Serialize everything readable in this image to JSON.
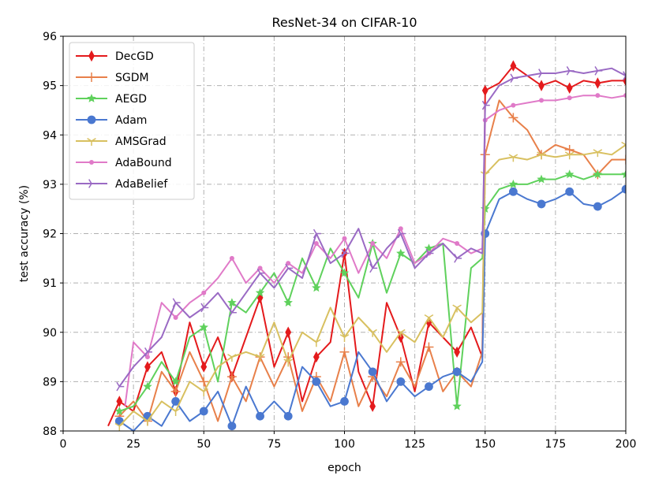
{
  "chart_data": {
    "type": "line",
    "title": "ResNet-34 on CIFAR-10",
    "xlabel": "epoch",
    "ylabel": "test accuracy (%)",
    "xlim": [
      0,
      200
    ],
    "ylim": [
      88,
      96
    ],
    "x_ticks": [
      0,
      25,
      50,
      75,
      100,
      125,
      150,
      175,
      200
    ],
    "y_ticks": [
      88,
      89,
      90,
      91,
      92,
      93,
      94,
      95,
      96
    ],
    "grid": true,
    "grid_style": "dash-dot",
    "legend_position": "upper-left",
    "series": [
      {
        "name": "DecGD",
        "color": "#e41a1c",
        "marker": "diamond",
        "x": [
          16,
          20,
          25,
          30,
          35,
          40,
          45,
          50,
          55,
          60,
          65,
          70,
          75,
          80,
          85,
          90,
          95,
          100,
          105,
          110,
          115,
          120,
          125,
          130,
          135,
          140,
          145,
          149,
          150,
          155,
          160,
          165,
          170,
          175,
          180,
          185,
          190,
          195,
          200
        ],
        "y": [
          88.1,
          88.6,
          88.4,
          89.3,
          89.6,
          88.8,
          90.2,
          89.3,
          89.9,
          89.1,
          89.9,
          90.7,
          89.3,
          90.0,
          88.6,
          89.5,
          89.8,
          91.6,
          89.2,
          88.5,
          90.6,
          89.9,
          88.8,
          90.2,
          89.9,
          89.6,
          90.1,
          89.5,
          94.9,
          95.05,
          95.4,
          95.2,
          95.0,
          95.1,
          94.95,
          95.1,
          95.05,
          95.1,
          95.1
        ]
      },
      {
        "name": "SGDM",
        "color": "#e8804a",
        "marker": "plus",
        "x": [
          20,
          25,
          30,
          35,
          40,
          45,
          50,
          55,
          60,
          65,
          70,
          75,
          80,
          85,
          90,
          95,
          100,
          105,
          110,
          115,
          120,
          125,
          130,
          135,
          140,
          145,
          149,
          150,
          155,
          160,
          165,
          170,
          175,
          180,
          185,
          190,
          195,
          200
        ],
        "y": [
          88.3,
          88.6,
          88.2,
          89.2,
          88.8,
          89.6,
          89.0,
          88.2,
          89.1,
          88.6,
          89.5,
          88.9,
          89.5,
          88.4,
          89.1,
          88.6,
          89.6,
          88.5,
          89.1,
          88.7,
          89.4,
          88.9,
          89.7,
          88.8,
          89.2,
          88.9,
          89.6,
          93.6,
          94.7,
          94.35,
          94.1,
          93.6,
          93.8,
          93.7,
          93.6,
          93.2,
          93.5,
          93.5
        ]
      },
      {
        "name": "AEGD",
        "color": "#5fd15c",
        "marker": "star",
        "x": [
          20,
          25,
          30,
          35,
          40,
          45,
          50,
          55,
          60,
          65,
          70,
          75,
          80,
          85,
          90,
          95,
          100,
          105,
          110,
          115,
          120,
          125,
          130,
          135,
          140,
          145,
          149,
          150,
          155,
          160,
          165,
          170,
          175,
          180,
          185,
          190,
          195,
          200
        ],
        "y": [
          88.4,
          88.5,
          88.9,
          89.4,
          89.0,
          89.9,
          90.1,
          89.0,
          90.6,
          90.4,
          90.8,
          91.2,
          90.6,
          91.5,
          90.9,
          91.7,
          91.2,
          90.7,
          91.8,
          90.8,
          91.6,
          91.4,
          91.7,
          91.8,
          88.5,
          91.3,
          91.5,
          92.5,
          92.9,
          93.0,
          93.0,
          93.1,
          93.1,
          93.2,
          93.1,
          93.2,
          93.2,
          93.2
        ]
      },
      {
        "name": "Adam",
        "color": "#4a78d0",
        "marker": "circle",
        "x": [
          20,
          25,
          30,
          35,
          40,
          45,
          50,
          55,
          60,
          65,
          70,
          75,
          80,
          85,
          90,
          95,
          100,
          105,
          110,
          115,
          120,
          125,
          130,
          135,
          140,
          145,
          149,
          150,
          155,
          160,
          165,
          170,
          175,
          180,
          185,
          190,
          195,
          200
        ],
        "y": [
          88.2,
          88.0,
          88.3,
          88.1,
          88.6,
          88.2,
          88.4,
          88.8,
          88.1,
          88.9,
          88.3,
          88.6,
          88.3,
          89.3,
          89.0,
          88.5,
          88.6,
          89.6,
          89.2,
          88.6,
          89.0,
          88.7,
          88.9,
          89.1,
          89.2,
          89.0,
          89.4,
          92.0,
          92.7,
          92.85,
          92.7,
          92.6,
          92.7,
          92.85,
          92.6,
          92.55,
          92.7,
          92.9
        ]
      },
      {
        "name": "AMSGrad",
        "color": "#d8c060",
        "marker": "tri_down",
        "x": [
          20,
          25,
          30,
          35,
          40,
          45,
          50,
          55,
          60,
          65,
          70,
          75,
          80,
          85,
          90,
          95,
          100,
          105,
          110,
          115,
          120,
          125,
          130,
          135,
          140,
          145,
          149,
          150,
          155,
          160,
          165,
          170,
          175,
          180,
          185,
          190,
          195,
          200
        ],
        "y": [
          88.1,
          88.4,
          88.2,
          88.6,
          88.4,
          89.0,
          88.8,
          89.3,
          89.5,
          89.6,
          89.5,
          90.2,
          89.4,
          90.0,
          89.8,
          90.5,
          89.9,
          90.3,
          90.0,
          89.6,
          90.0,
          89.8,
          90.3,
          89.9,
          90.5,
          90.2,
          90.4,
          93.2,
          93.5,
          93.55,
          93.5,
          93.6,
          93.55,
          93.6,
          93.6,
          93.65,
          93.6,
          93.8
        ]
      },
      {
        "name": "AdaBound",
        "color": "#e07ac8",
        "marker": "point",
        "x": [
          22,
          25,
          30,
          35,
          40,
          45,
          50,
          55,
          60,
          65,
          70,
          75,
          80,
          85,
          90,
          95,
          100,
          105,
          110,
          115,
          120,
          125,
          130,
          135,
          140,
          145,
          149,
          150,
          155,
          160,
          165,
          170,
          175,
          180,
          185,
          190,
          195,
          200
        ],
        "y": [
          88.5,
          89.8,
          89.5,
          90.6,
          90.3,
          90.6,
          90.8,
          91.1,
          91.5,
          91.0,
          91.3,
          91.0,
          91.4,
          91.2,
          91.8,
          91.5,
          91.9,
          91.2,
          91.8,
          91.5,
          92.1,
          91.4,
          91.6,
          91.9,
          91.8,
          91.6,
          91.7,
          94.3,
          94.5,
          94.6,
          94.65,
          94.7,
          94.7,
          94.75,
          94.8,
          94.8,
          94.75,
          94.8
        ]
      },
      {
        "name": "AdaBelief",
        "color": "#9a6ac4",
        "marker": "tri_right",
        "x": [
          20,
          25,
          30,
          35,
          40,
          45,
          50,
          55,
          60,
          65,
          70,
          75,
          80,
          85,
          90,
          95,
          100,
          105,
          110,
          115,
          120,
          125,
          130,
          135,
          140,
          145,
          149,
          150,
          155,
          160,
          165,
          170,
          175,
          180,
          185,
          190,
          195,
          200
        ],
        "y": [
          88.9,
          89.3,
          89.6,
          89.9,
          90.6,
          90.3,
          90.5,
          90.8,
          90.4,
          90.8,
          91.2,
          90.9,
          91.3,
          91.1,
          92.0,
          91.4,
          91.6,
          92.1,
          91.3,
          91.7,
          92.0,
          91.3,
          91.6,
          91.8,
          91.5,
          91.7,
          91.6,
          94.6,
          95.0,
          95.15,
          95.2,
          95.25,
          95.25,
          95.3,
          95.25,
          95.3,
          95.35,
          95.2
        ]
      }
    ]
  }
}
